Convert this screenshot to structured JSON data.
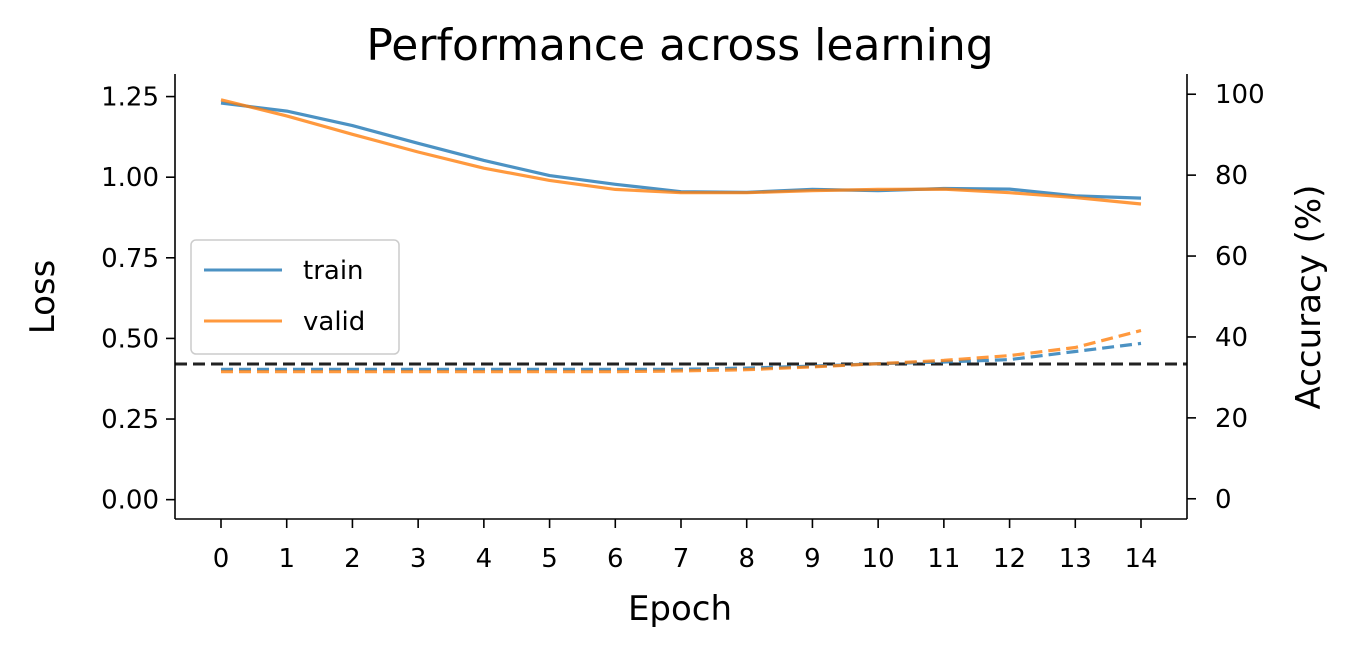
{
  "chart_data": {
    "type": "line",
    "title": "Performance across learning",
    "xlabel": "Epoch",
    "ylabel": "Loss",
    "y2label": "Accuracy (%)",
    "x": [
      0,
      1,
      2,
      3,
      4,
      5,
      6,
      7,
      8,
      9,
      10,
      11,
      12,
      13,
      14
    ],
    "xlim": [
      -0.7,
      14.7
    ],
    "ylim": [
      -0.06,
      1.32
    ],
    "y2lim": [
      -5,
      105
    ],
    "yticks": [
      0.0,
      0.25,
      0.5,
      0.75,
      1.0,
      1.25
    ],
    "ytick_labels": [
      "0.00",
      "0.25",
      "0.50",
      "0.75",
      "1.00",
      "1.25"
    ],
    "y2ticks": [
      0,
      20,
      40,
      60,
      80,
      100
    ],
    "y2tick_labels": [
      "0",
      "20",
      "40",
      "60",
      "80",
      "100"
    ],
    "xtick_labels": [
      "0",
      "1",
      "2",
      "3",
      "4",
      "5",
      "6",
      "7",
      "8",
      "9",
      "10",
      "11",
      "12",
      "13",
      "14"
    ],
    "legend_position": "center-left",
    "colors": {
      "train": "#1f77b4",
      "valid": "#ff7f0e",
      "reference": "#222222"
    },
    "series": [
      {
        "name": "train",
        "axis": "loss",
        "style": "solid",
        "values": [
          1.23,
          1.205,
          1.16,
          1.105,
          1.052,
          1.005,
          0.978,
          0.955,
          0.953,
          0.962,
          0.958,
          0.965,
          0.963,
          0.942,
          0.935
        ]
      },
      {
        "name": "valid",
        "axis": "loss",
        "style": "solid",
        "values": [
          1.24,
          1.19,
          1.133,
          1.078,
          1.028,
          0.99,
          0.962,
          0.952,
          0.952,
          0.958,
          0.962,
          0.963,
          0.952,
          0.937,
          0.917
        ]
      },
      {
        "name": "train",
        "axis": "accuracy",
        "style": "dashed",
        "values": [
          32,
          32,
          32,
          32,
          32,
          32,
          32,
          32,
          32.3,
          32.8,
          33.4,
          33.8,
          34.4,
          36.4,
          38.4
        ]
      },
      {
        "name": "valid",
        "axis": "accuracy",
        "style": "dashed",
        "values": [
          31.4,
          31.4,
          31.4,
          31.4,
          31.4,
          31.4,
          31.4,
          31.6,
          31.9,
          32.6,
          33.4,
          34.2,
          35.4,
          37.4,
          41.6
        ]
      }
    ],
    "reference_line": {
      "axis": "accuracy",
      "value": 33.3,
      "style": "dashed"
    }
  }
}
